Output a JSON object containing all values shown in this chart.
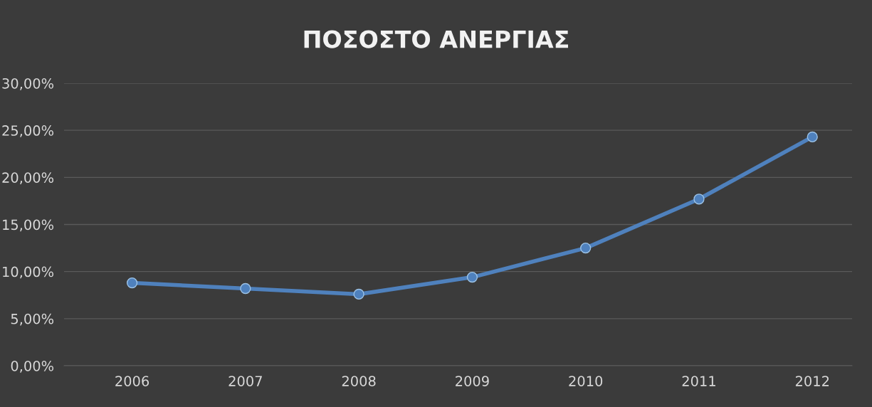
{
  "chart_data": {
    "type": "line",
    "title": "ΠΟΣΟΣΤΟ ΑΝΕΡΓΙΑΣ",
    "categories": [
      "2006",
      "2007",
      "2008",
      "2009",
      "2010",
      "2011",
      "2012"
    ],
    "series": [
      {
        "color": "#4f81bd",
        "values": [
          8.8,
          8.2,
          7.6,
          9.4,
          12.5,
          17.7,
          24.3
        ]
      }
    ],
    "ylim": [
      0,
      30
    ],
    "yticks": [
      {
        "value": 0,
        "label": "0,00%"
      },
      {
        "value": 5,
        "label": "5,00%"
      },
      {
        "value": 10,
        "label": "10,00%"
      },
      {
        "value": 15,
        "label": "15,00%"
      },
      {
        "value": 20,
        "label": "20,00%"
      },
      {
        "value": 25,
        "label": "25,00%"
      },
      {
        "value": 30,
        "label": "30,00%"
      }
    ],
    "grid": "y",
    "marker": "circle",
    "line_style": "solid"
  }
}
